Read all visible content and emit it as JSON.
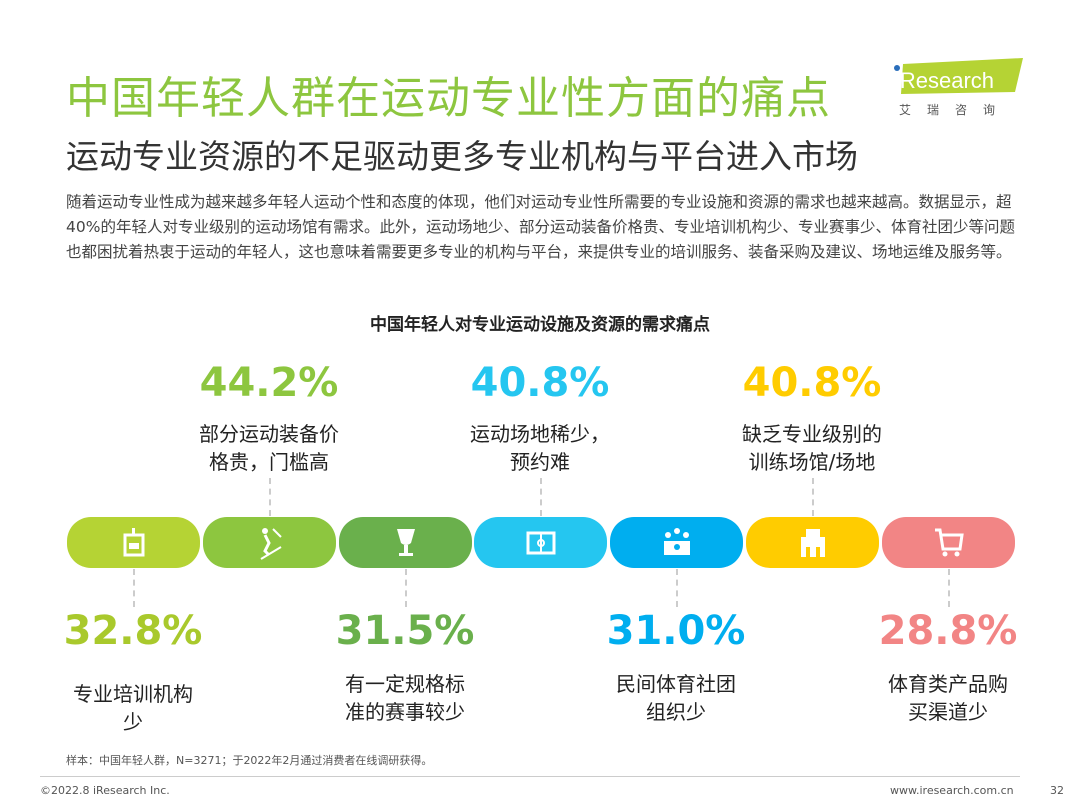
{
  "title": "中国年轻人群在运动专业性方面的痛点",
  "subtitle": "运动专业资源的不足驱动更多专业机构与平台进入市场",
  "body": "随着运动专业性成为越来越多年轻人运动个性和态度的体现，他们对运动专业性所需要的专业设施和资源的需求也越来越高。数据显示，超40%的年轻人对专业级别的运动场馆有需求。此外，运动场地少、部分运动装备价格贵、专业培训机构少、专业赛事少、体育社团少等问题也都困扰着热衷于运动的年轻人，这也意味着需要更多专业的机构与平台，来提供专业的培训服务、装备采购及建议、场地运维及服务等。",
  "logo": {
    "brand": "iResearch",
    "cn": "艾 瑞 咨 询"
  },
  "chart_title": "中国年轻人对专业运动设施及资源的需求痛点",
  "items": [
    {
      "pct": "32.8%",
      "label": "专业培训机构少",
      "icon": "training-icon",
      "color": "#b5d334"
    },
    {
      "pct": "44.2%",
      "label": "部分运动装备价格贵，门槛高",
      "icon": "skier-icon",
      "color": "#8dc63f"
    },
    {
      "pct": "31.5%",
      "label": "有一定规格标准的赛事较少",
      "icon": "trophy-icon",
      "color": "#6ab04c"
    },
    {
      "pct": "40.8%",
      "label": "运动场地稀少，预约难",
      "icon": "court-icon",
      "color": "#25c6f0"
    },
    {
      "pct": "31.0%",
      "label": "民间体育社团组织少",
      "icon": "group-icon",
      "color": "#00aeef"
    },
    {
      "pct": "40.8%",
      "label": "缺乏专业级别的训练场馆/场地",
      "icon": "building-icon",
      "color": "#ffcc00"
    },
    {
      "pct": "28.8%",
      "label": "体育类产品购买渠道少",
      "icon": "cart-icon",
      "color": "#f28585"
    }
  ],
  "footnote": "样本：中国年轻人群，N=3271；于2022年2月通过消费者在线调研获得。",
  "copyright": "©2022.8 iResearch Inc.",
  "website": "www.iresearch.com.cn",
  "page": "32"
}
